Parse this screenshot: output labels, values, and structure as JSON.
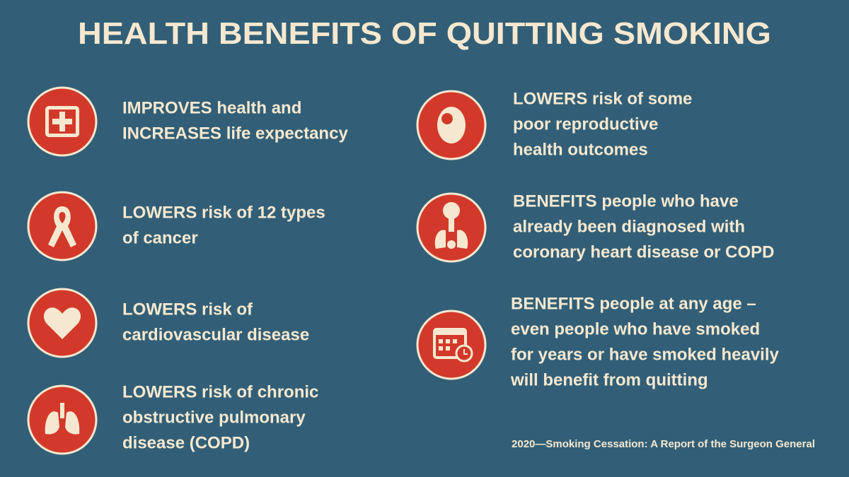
{
  "title": "HEALTH BENEFITS OF QUITTING SMOKING",
  "items": [
    {
      "lines": [
        "IMPROVES health and",
        "INCREASES life expectancy"
      ]
    },
    {
      "lines": [
        "LOWERS risk of 12 types",
        "of cancer"
      ]
    },
    {
      "lines": [
        "LOWERS risk of",
        "cardiovascular disease"
      ]
    },
    {
      "lines": [
        "LOWERS risk of chronic",
        "obstructive pulmonary",
        "disease (COPD)"
      ]
    },
    {
      "lines": [
        "LOWERS risk of some",
        "poor reproductive",
        "health outcomes"
      ]
    },
    {
      "lines": [
        "BENEFITS people who have",
        "already been diagnosed with",
        "coronary heart disease or COPD"
      ]
    },
    {
      "lines": [
        "BENEFITS people at any age –",
        "even people who have smoked",
        "for years or have smoked heavily",
        "will benefit from quitting"
      ]
    }
  ],
  "source": "2020—Smoking Cessation: A Report of the Surgeon General"
}
